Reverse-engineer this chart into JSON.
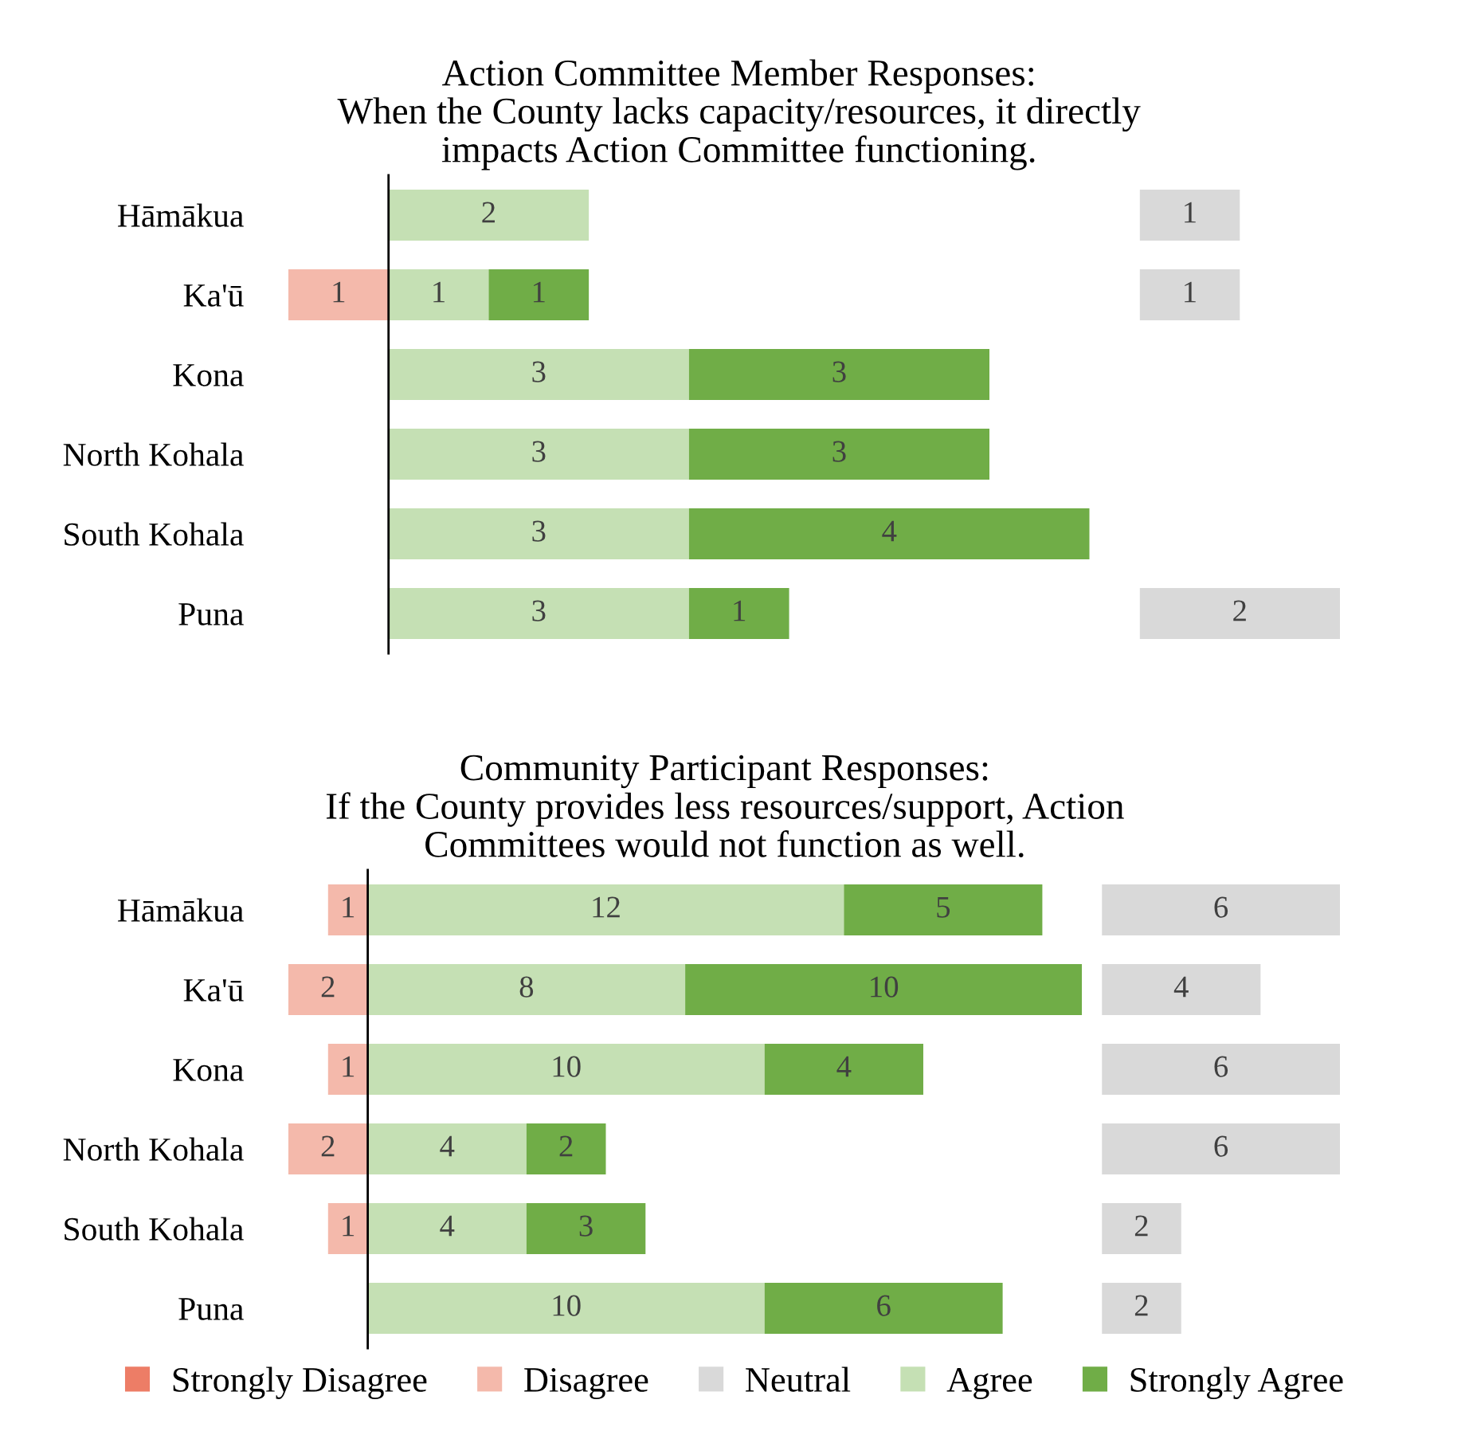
{
  "chart_data": [
    {
      "type": "bar",
      "orientation": "horizontal",
      "stacked": true,
      "data_labels": true,
      "tick_labels": "y",
      "legend": "bottom",
      "categories": [
        "Hāmākua",
        "Ka'ū",
        "Kona",
        "North Kohala",
        "South Kohala",
        "Puna"
      ],
      "xlim": [
        1,
        0
      ],
      "series": [
        {
          "name": "Strongly Disagree",
          "color": "#ed7d66",
          "values": [
            null,
            null,
            null,
            null,
            null,
            null
          ]
        },
        {
          "name": "Disagree",
          "color": "#f4b9ab",
          "values": [
            null,
            1,
            null,
            null,
            null,
            null
          ]
        }
      ]
    },
    {
      "type": "bar",
      "orientation": "horizontal",
      "stacked": true,
      "data_labels": true,
      "tick_labels": false,
      "legend": "bottom",
      "title": "Action Committee Member Responses:\nWhen the County lacks capacity/resources, it directly\nimpacts Action Committee functioning.",
      "categories": [
        null,
        null,
        null,
        null,
        null,
        null
      ],
      "ref_lines": [
        {
          "axis": "x",
          "value": 0,
          "color": "#000000"
        }
      ],
      "series": [
        {
          "name": "Agree",
          "color": "#c5e0b4",
          "values": [
            2,
            1,
            3,
            3,
            3,
            3
          ]
        },
        {
          "name": "Strongly Agree",
          "color": "#70ad47",
          "values": [
            null,
            1,
            3,
            3,
            4,
            1
          ]
        }
      ]
    },
    {
      "type": "bar",
      "orientation": "horizontal",
      "data_labels": true,
      "tick_labels": false,
      "legend": "bottom",
      "categories": [
        null,
        null,
        null,
        null,
        null,
        null
      ],
      "series": [
        {
          "name": "Neutral",
          "color": "#d9d9d9",
          "values": [
            1,
            1,
            null,
            null,
            null,
            2
          ]
        }
      ]
    },
    {
      "type": "bar",
      "orientation": "horizontal",
      "stacked": true,
      "data_labels": true,
      "tick_labels": "y",
      "categories": [
        "Hāmākua",
        "Ka'ū",
        "Kona",
        "North Kohala",
        "South Kohala",
        "Puna"
      ],
      "xlim": [
        2,
        0
      ],
      "series": [
        {
          "color": "#f4b9ab",
          "values": [
            1,
            2,
            1,
            2,
            1,
            null
          ]
        }
      ]
    },
    {
      "type": "bar",
      "orientation": "horizontal",
      "stacked": true,
      "data_labels": true,
      "tick_labels": false,
      "title": "Community Participant Responses:\nIf the County provides less resources/support, Action\nCommittees would not function as well.",
      "categories": [
        null,
        null,
        null,
        null,
        null,
        null
      ],
      "ref_lines": [
        {
          "axis": "x",
          "value": 0,
          "color": "#000000"
        }
      ],
      "series": [
        {
          "color": "#c5e0b4",
          "values": [
            12,
            8,
            10,
            4,
            4,
            10
          ]
        },
        {
          "color": "#70ad47",
          "values": [
            5,
            10,
            4,
            2,
            3,
            6
          ]
        }
      ]
    },
    {
      "type": "bar",
      "orientation": "horizontal",
      "data_labels": true,
      "tick_labels": false,
      "categories": [
        null,
        null,
        null,
        null,
        null,
        null
      ],
      "series": [
        {
          "color": "#d9d9d9",
          "values": [
            6,
            4,
            6,
            6,
            2,
            2
          ]
        }
      ]
    }
  ]
}
